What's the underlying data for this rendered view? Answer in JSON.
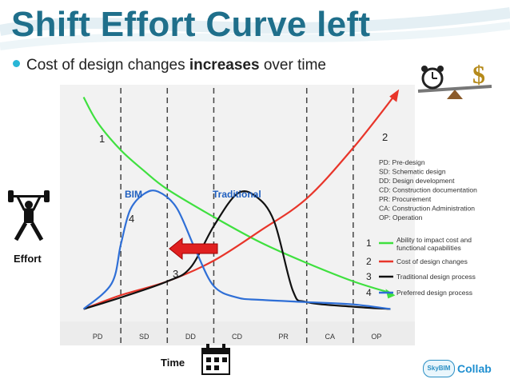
{
  "slide": {
    "title": "Shift Effort Curve left",
    "bullet": {
      "before": "Cost of design changes ",
      "bold": "increases",
      "after": " over time"
    },
    "effort_label": "Effort",
    "time_label": "Time",
    "logo": {
      "badge": "SkyBIM",
      "name": "Collab"
    }
  },
  "chart_data": {
    "type": "line",
    "xlabel": "Time",
    "ylabel": "Effort",
    "categories": [
      "PD",
      "SD",
      "DD",
      "CD",
      "PR",
      "CA",
      "OP"
    ],
    "xlim": [
      0,
      7
    ],
    "ylim": [
      0,
      100
    ],
    "phase_boundaries": [
      1,
      2,
      3,
      5,
      6
    ],
    "annotations": [
      "BIM",
      "Traditional"
    ],
    "curve_markers": [
      "1",
      "2",
      "3",
      "4"
    ],
    "legend": {
      "position": "right",
      "abbreviations": [
        "PD: Pre-design",
        "SD: Schematic design",
        "DD: Design development",
        "CD: Construction documentation",
        "PR: Procurement",
        "CA: Construction Administration",
        "OP: Operation"
      ],
      "entries": [
        {
          "number": "1",
          "label": "Ability to impact cost and functional capabilities",
          "color": "#3fe03f"
        },
        {
          "number": "2",
          "label": "Cost of design changes",
          "color": "#e8352a"
        },
        {
          "number": "3",
          "label": "Traditional design process",
          "color": "#111111"
        },
        {
          "number": "4",
          "label": "Preferred design process",
          "color": "#2f6fd6"
        }
      ]
    },
    "series": [
      {
        "number": "1",
        "color": "#3fe03f",
        "points": [
          [
            0.2,
            96
          ],
          [
            0.5,
            85
          ],
          [
            1,
            73
          ],
          [
            1.5,
            64
          ],
          [
            2,
            56
          ],
          [
            3,
            44
          ],
          [
            4,
            33
          ],
          [
            5,
            24
          ],
          [
            6,
            16
          ],
          [
            6.8,
            11
          ]
        ]
      },
      {
        "number": "2",
        "color": "#e8352a",
        "points": [
          [
            0.2,
            4
          ],
          [
            1,
            10
          ],
          [
            2,
            16
          ],
          [
            3,
            25
          ],
          [
            4,
            38
          ],
          [
            5,
            52
          ],
          [
            6,
            74
          ],
          [
            6.9,
            97
          ]
        ]
      },
      {
        "number": "3",
        "color": "#111111",
        "points": [
          [
            0.2,
            4
          ],
          [
            1,
            9
          ],
          [
            2,
            16
          ],
          [
            2.5,
            22
          ],
          [
            3,
            40
          ],
          [
            3.5,
            54
          ],
          [
            3.9,
            53
          ],
          [
            4.3,
            42
          ],
          [
            4.7,
            12
          ],
          [
            5,
            7
          ],
          [
            6,
            5
          ],
          [
            6.8,
            4
          ]
        ]
      },
      {
        "number": "4",
        "color": "#2f6fd6",
        "points": [
          [
            0.2,
            4
          ],
          [
            0.8,
            15
          ],
          [
            1,
            32
          ],
          [
            1.2,
            47
          ],
          [
            1.5,
            54
          ],
          [
            1.8,
            55
          ],
          [
            2.2,
            48
          ],
          [
            2.6,
            30
          ],
          [
            3,
            14
          ],
          [
            3.5,
            9
          ],
          [
            4,
            8
          ],
          [
            5,
            7
          ],
          [
            6,
            6
          ],
          [
            6.8,
            4
          ]
        ]
      }
    ]
  }
}
